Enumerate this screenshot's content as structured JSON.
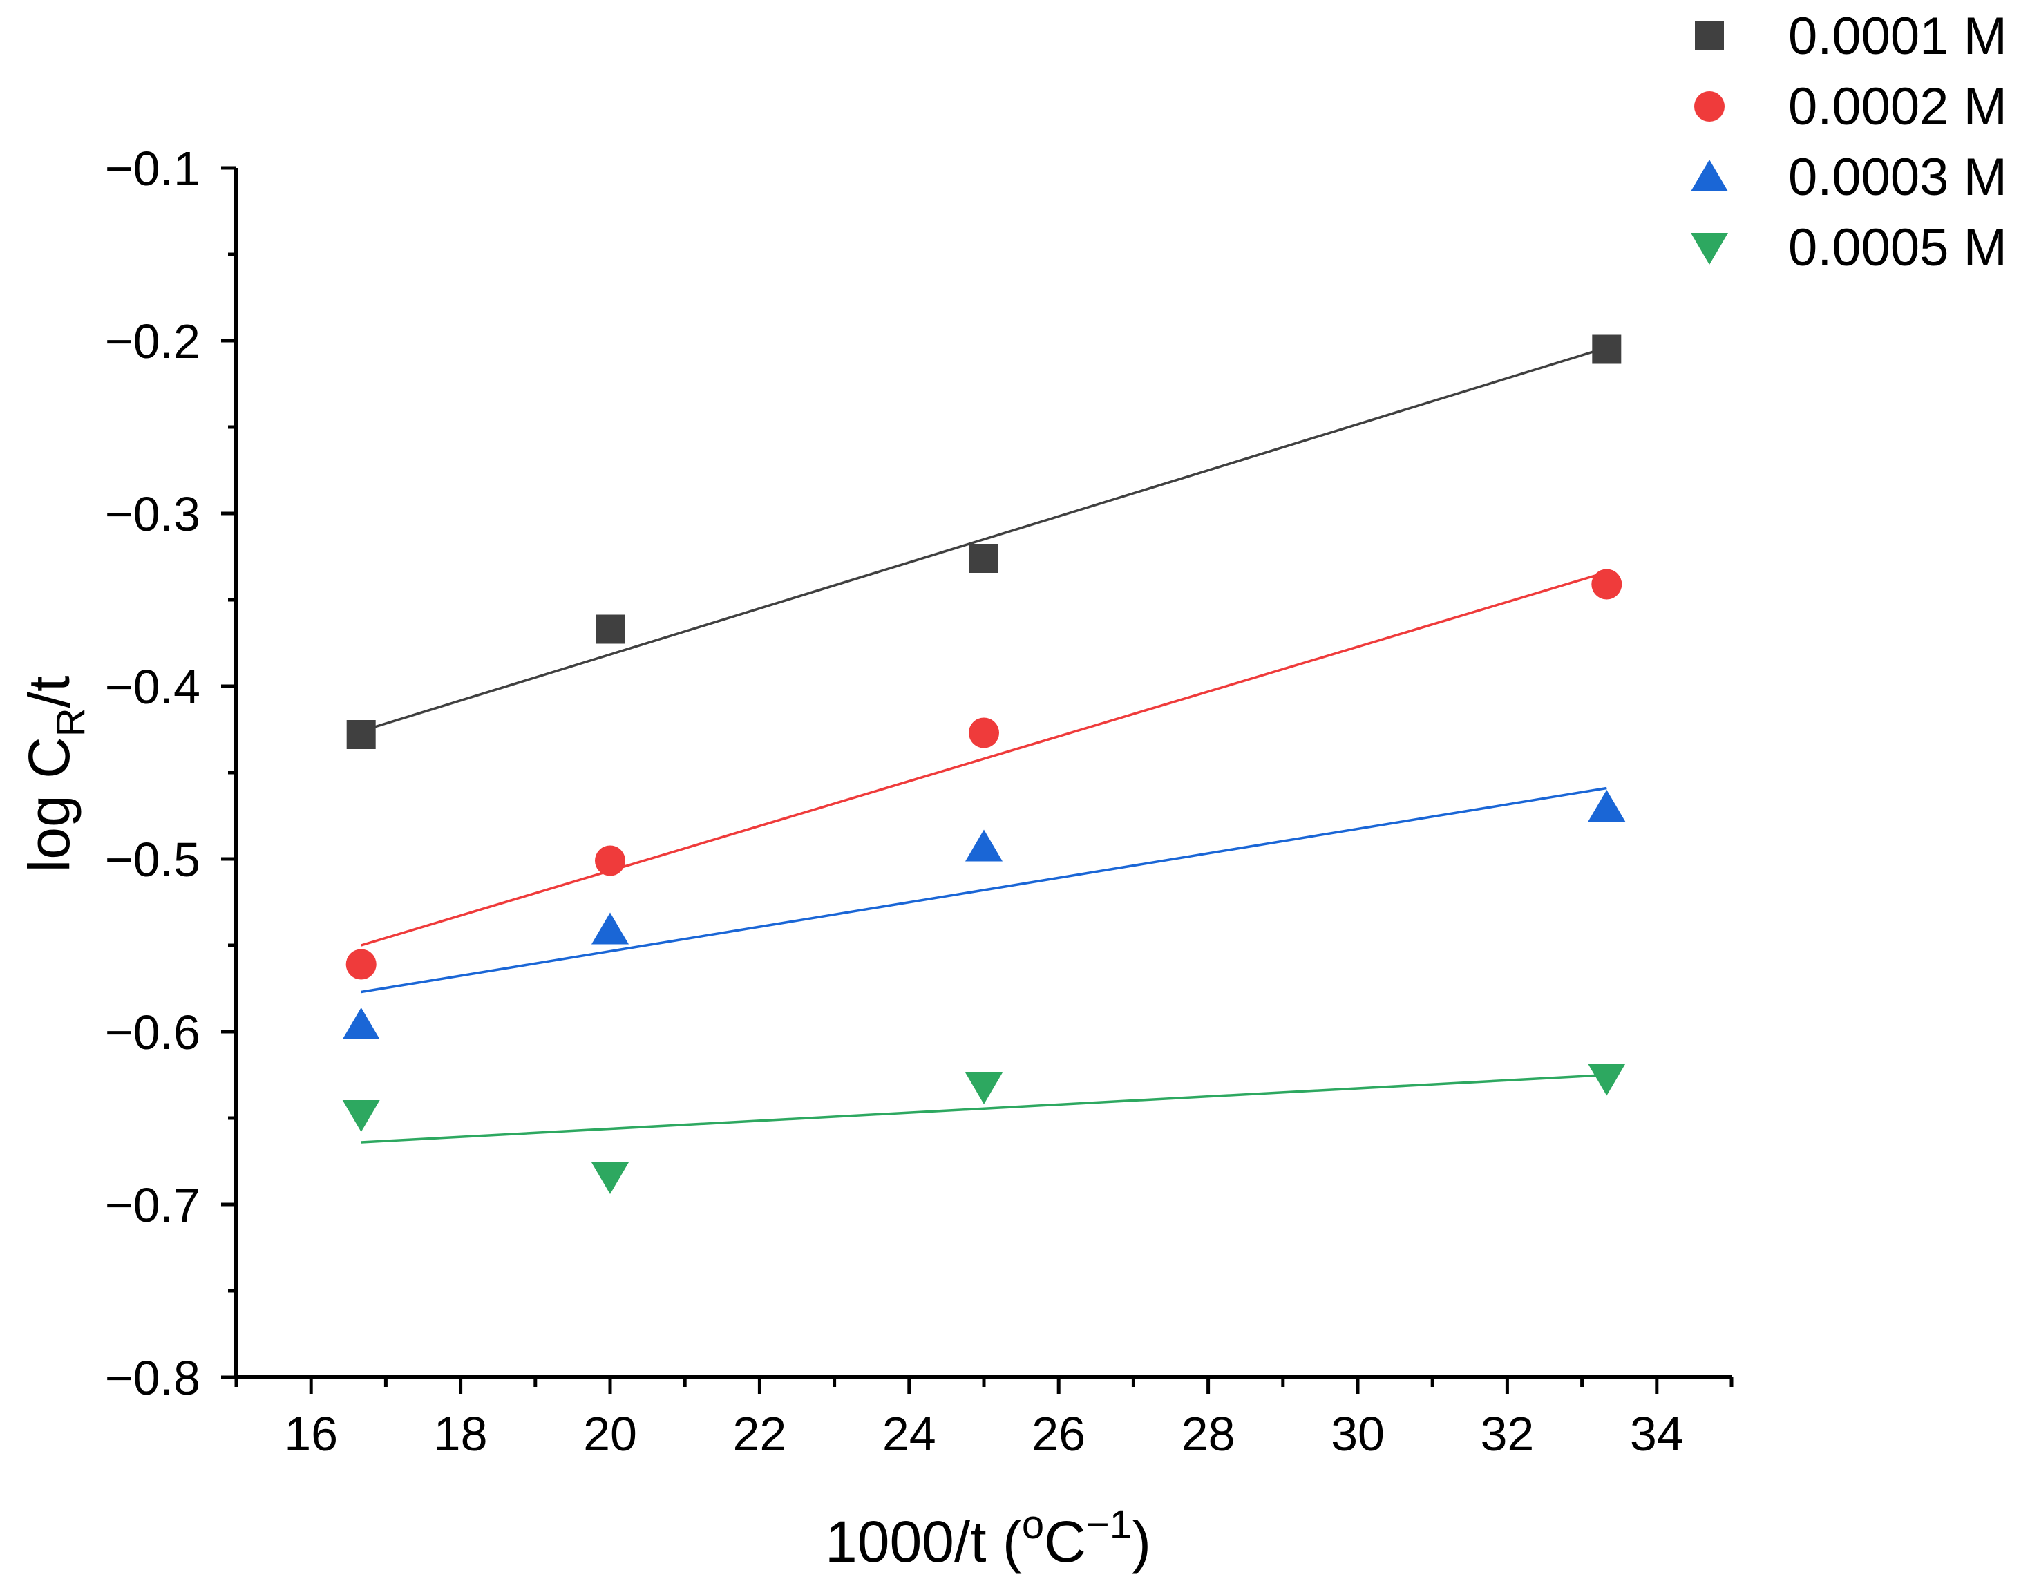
{
  "chart_data": {
    "type": "scatter",
    "title": "",
    "xlabel": {
      "main": "1000/t (",
      "degree": "o",
      "unit": "C",
      "exp": "−1",
      "close": ")"
    },
    "ylabel": {
      "main": "log C",
      "sub": "R",
      "tail": "/t"
    },
    "xlim": [
      15,
      35
    ],
    "ylim": [
      -0.8,
      -0.1
    ],
    "xticks": [
      16,
      18,
      20,
      22,
      24,
      26,
      28,
      30,
      32,
      34
    ],
    "xtick_labels": [
      "16",
      "18",
      "20",
      "22",
      "24",
      "26",
      "28",
      "30",
      "32",
      "34"
    ],
    "yticks": [
      -0.1,
      -0.2,
      -0.3,
      -0.4,
      -0.5,
      -0.6,
      -0.7,
      -0.8
    ],
    "ytick_labels": [
      "−0.1",
      "−0.2",
      "−0.3",
      "−0.4",
      "−0.5",
      "−0.6",
      "−0.7",
      "−0.8"
    ],
    "legend_position": "top-right",
    "x": [
      16.67,
      20.0,
      25.0,
      33.33
    ],
    "series": [
      {
        "name": "0.0001 M",
        "marker": "square",
        "color": "#404040",
        "values": [
          -0.428,
          -0.367,
          -0.326,
          -0.205
        ],
        "fit": [
          -0.426,
          -0.204
        ]
      },
      {
        "name": "0.0002 M",
        "marker": "circle",
        "color": "#ef3b3b",
        "values": [
          -0.561,
          -0.501,
          -0.427,
          -0.341
        ],
        "fit": [
          -0.55,
          -0.334
        ]
      },
      {
        "name": "0.0003 M",
        "marker": "triangle-up",
        "color": "#1a66d6",
        "values": [
          -0.596,
          -0.541,
          -0.493,
          -0.47
        ],
        "fit": [
          -0.577,
          -0.459
        ]
      },
      {
        "name": "0.0005 M",
        "marker": "triangle-down",
        "color": "#2da860",
        "values": [
          -0.648,
          -0.684,
          -0.632,
          -0.627
        ],
        "fit": [
          -0.664,
          -0.625
        ]
      }
    ]
  }
}
